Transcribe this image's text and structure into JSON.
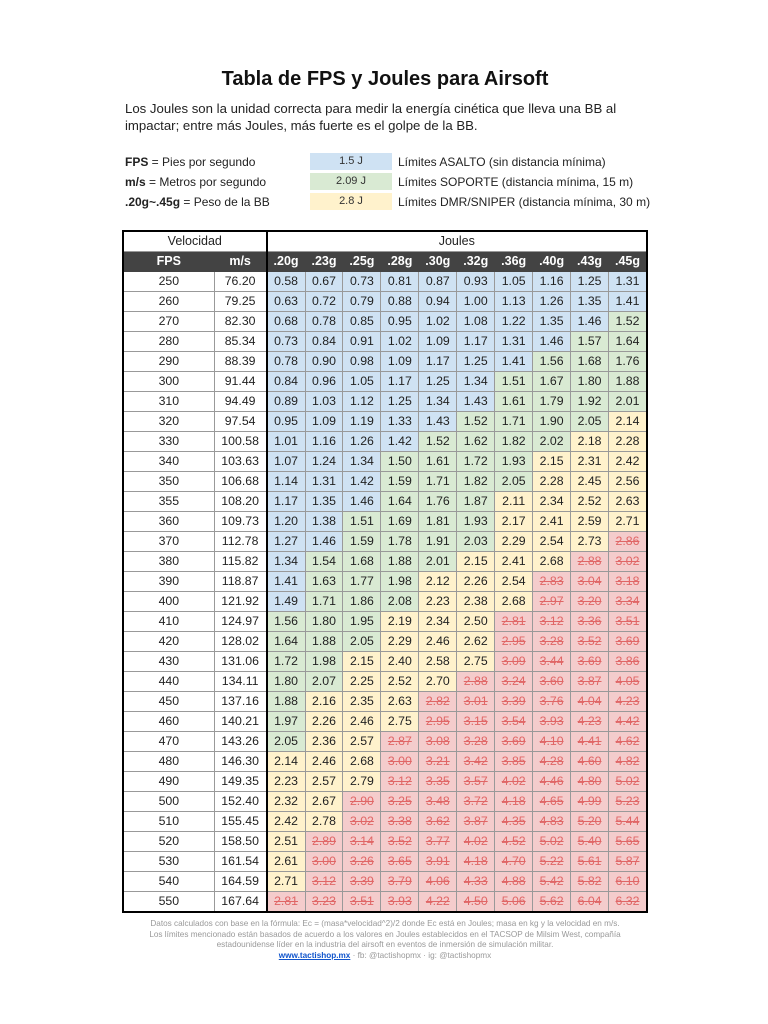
{
  "title": "Tabla de FPS y Joules para Airsoft",
  "intro": "Los Joules son la unidad correcta para medir la energía cinética que lleva una BB al impactar; entre más Joules, más fuerte es el golpe de la BB.",
  "legend": [
    {
      "key": "FPS",
      "key_desc": " = Pies por segundo",
      "swatch": "1.5 J",
      "color": "#cfe2f3",
      "desc": "Límites ASALTO (sin distancia mínima)"
    },
    {
      "key": "m/s",
      "key_desc": " = Metros por segundo",
      "swatch": "2.09 J",
      "color": "#d9ead3",
      "desc": "Límites SOPORTE (distancia mínima, 15 m)"
    },
    {
      "key": ".20g~.45g",
      "key_desc": " = Peso de la BB",
      "swatch": "2.8 J",
      "color": "#fff2cc",
      "desc": "Límites DMR/SNIPER (distancia mínima, 30 m)"
    }
  ],
  "thresholds": {
    "asalto": 1.5,
    "soporte": 2.09,
    "sniper": 2.8
  },
  "table": {
    "group_velocidad": "Velocidad",
    "group_joules": "Joules",
    "col_fps": "FPS",
    "col_ms": "m/s",
    "weights": [
      ".20g",
      ".23g",
      ".25g",
      ".28g",
      ".30g",
      ".32g",
      ".36g",
      ".40g",
      ".43g",
      ".45g"
    ],
    "rows": [
      [
        "250",
        "76.20",
        [
          "0.58",
          "0.67",
          "0.73",
          "0.81",
          "0.87",
          "0.93",
          "1.05",
          "1.16",
          "1.25",
          "1.31"
        ]
      ],
      [
        "260",
        "79.25",
        [
          "0.63",
          "0.72",
          "0.79",
          "0.88",
          "0.94",
          "1.00",
          "1.13",
          "1.26",
          "1.35",
          "1.41"
        ]
      ],
      [
        "270",
        "82.30",
        [
          "0.68",
          "0.78",
          "0.85",
          "0.95",
          "1.02",
          "1.08",
          "1.22",
          "1.35",
          "1.46",
          "1.52"
        ]
      ],
      [
        "280",
        "85.34",
        [
          "0.73",
          "0.84",
          "0.91",
          "1.02",
          "1.09",
          "1.17",
          "1.31",
          "1.46",
          "1.57",
          "1.64"
        ]
      ],
      [
        "290",
        "88.39",
        [
          "0.78",
          "0.90",
          "0.98",
          "1.09",
          "1.17",
          "1.25",
          "1.41",
          "1.56",
          "1.68",
          "1.76"
        ]
      ],
      [
        "300",
        "91.44",
        [
          "0.84",
          "0.96",
          "1.05",
          "1.17",
          "1.25",
          "1.34",
          "1.51",
          "1.67",
          "1.80",
          "1.88"
        ]
      ],
      [
        "310",
        "94.49",
        [
          "0.89",
          "1.03",
          "1.12",
          "1.25",
          "1.34",
          "1.43",
          "1.61",
          "1.79",
          "1.92",
          "2.01"
        ]
      ],
      [
        "320",
        "97.54",
        [
          "0.95",
          "1.09",
          "1.19",
          "1.33",
          "1.43",
          "1.52",
          "1.71",
          "1.90",
          "2.05",
          "2.14"
        ]
      ],
      [
        "330",
        "100.58",
        [
          "1.01",
          "1.16",
          "1.26",
          "1.42",
          "1.52",
          "1.62",
          "1.82",
          "2.02",
          "2.18",
          "2.28"
        ]
      ],
      [
        "340",
        "103.63",
        [
          "1.07",
          "1.24",
          "1.34",
          "1.50",
          "1.61",
          "1.72",
          "1.93",
          "2.15",
          "2.31",
          "2.42"
        ]
      ],
      [
        "350",
        "106.68",
        [
          "1.14",
          "1.31",
          "1.42",
          "1.59",
          "1.71",
          "1.82",
          "2.05",
          "2.28",
          "2.45",
          "2.56"
        ]
      ],
      [
        "355",
        "108.20",
        [
          "1.17",
          "1.35",
          "1.46",
          "1.64",
          "1.76",
          "1.87",
          "2.11",
          "2.34",
          "2.52",
          "2.63"
        ]
      ],
      [
        "360",
        "109.73",
        [
          "1.20",
          "1.38",
          "1.51",
          "1.69",
          "1.81",
          "1.93",
          "2.17",
          "2.41",
          "2.59",
          "2.71"
        ]
      ],
      [
        "370",
        "112.78",
        [
          "1.27",
          "1.46",
          "1.59",
          "1.78",
          "1.91",
          "2.03",
          "2.29",
          "2.54",
          "2.73",
          "2.86"
        ]
      ],
      [
        "380",
        "115.82",
        [
          "1.34",
          "1.54",
          "1.68",
          "1.88",
          "2.01",
          "2.15",
          "2.41",
          "2.68",
          "2.88",
          "3.02"
        ]
      ],
      [
        "390",
        "118.87",
        [
          "1.41",
          "1.63",
          "1.77",
          "1.98",
          "2.12",
          "2.26",
          "2.54",
          "2.83",
          "3.04",
          "3.18"
        ]
      ],
      [
        "400",
        "121.92",
        [
          "1.49",
          "1.71",
          "1.86",
          "2.08",
          "2.23",
          "2.38",
          "2.68",
          "2.97",
          "3.20",
          "3.34"
        ]
      ],
      [
        "410",
        "124.97",
        [
          "1.56",
          "1.80",
          "1.95",
          "2.19",
          "2.34",
          "2.50",
          "2.81",
          "3.12",
          "3.36",
          "3.51"
        ]
      ],
      [
        "420",
        "128.02",
        [
          "1.64",
          "1.88",
          "2.05",
          "2.29",
          "2.46",
          "2.62",
          "2.95",
          "3.28",
          "3.52",
          "3.69"
        ]
      ],
      [
        "430",
        "131.06",
        [
          "1.72",
          "1.98",
          "2.15",
          "2.40",
          "2.58",
          "2.75",
          "3.09",
          "3.44",
          "3.69",
          "3.86"
        ]
      ],
      [
        "440",
        "134.11",
        [
          "1.80",
          "2.07",
          "2.25",
          "2.52",
          "2.70",
          "2.88",
          "3.24",
          "3.60",
          "3.87",
          "4.05"
        ]
      ],
      [
        "450",
        "137.16",
        [
          "1.88",
          "2.16",
          "2.35",
          "2.63",
          "2.82",
          "3.01",
          "3.39",
          "3.76",
          "4.04",
          "4.23"
        ]
      ],
      [
        "460",
        "140.21",
        [
          "1.97",
          "2.26",
          "2.46",
          "2.75",
          "2.95",
          "3.15",
          "3.54",
          "3.93",
          "4.23",
          "4.42"
        ]
      ],
      [
        "470",
        "143.26",
        [
          "2.05",
          "2.36",
          "2.57",
          "2.87",
          "3.08",
          "3.28",
          "3.69",
          "4.10",
          "4.41",
          "4.62"
        ]
      ],
      [
        "480",
        "146.30",
        [
          "2.14",
          "2.46",
          "2.68",
          "3.00",
          "3.21",
          "3.42",
          "3.85",
          "4.28",
          "4.60",
          "4.82"
        ]
      ],
      [
        "490",
        "149.35",
        [
          "2.23",
          "2.57",
          "2.79",
          "3.12",
          "3.35",
          "3.57",
          "4.02",
          "4.46",
          "4.80",
          "5.02"
        ]
      ],
      [
        "500",
        "152.40",
        [
          "2.32",
          "2.67",
          "2.90",
          "3.25",
          "3.48",
          "3.72",
          "4.18",
          "4.65",
          "4.99",
          "5.23"
        ]
      ],
      [
        "510",
        "155.45",
        [
          "2.42",
          "2.78",
          "3.02",
          "3.38",
          "3.62",
          "3.87",
          "4.35",
          "4.83",
          "5.20",
          "5.44"
        ]
      ],
      [
        "520",
        "158.50",
        [
          "2.51",
          "2.89",
          "3.14",
          "3.52",
          "3.77",
          "4.02",
          "4.52",
          "5.02",
          "5.40",
          "5.65"
        ]
      ],
      [
        "530",
        "161.54",
        [
          "2.61",
          "3.00",
          "3.26",
          "3.65",
          "3.91",
          "4.18",
          "4.70",
          "5.22",
          "5.61",
          "5.87"
        ]
      ],
      [
        "540",
        "164.59",
        [
          "2.71",
          "3.12",
          "3.39",
          "3.79",
          "4.06",
          "4.33",
          "4.88",
          "5.42",
          "5.82",
          "6.10"
        ]
      ],
      [
        "550",
        "167.64",
        [
          "2.81",
          "3.23",
          "3.51",
          "3.93",
          "4.22",
          "4.50",
          "5.06",
          "5.62",
          "6.04",
          "6.32"
        ]
      ]
    ]
  },
  "footer": {
    "line1": "Datos calculados con base en la fórmula:  Ec = (masa*velocidad^2)/2 donde Ec está en Joules; masa en kg y la velocidad en m/s.",
    "line2": "Los límites mencionado están basados de acuerdo a los valores en Joules establecidos en el TACSOP de Milsim West, compañía",
    "line3": "estadounidense líder en la industria del airsoft en eventos de inmersión de simulación militar.",
    "link": "www.tactishop.mx",
    "social": " · fb: @tactishopmx · ig: @tactishopmx"
  }
}
